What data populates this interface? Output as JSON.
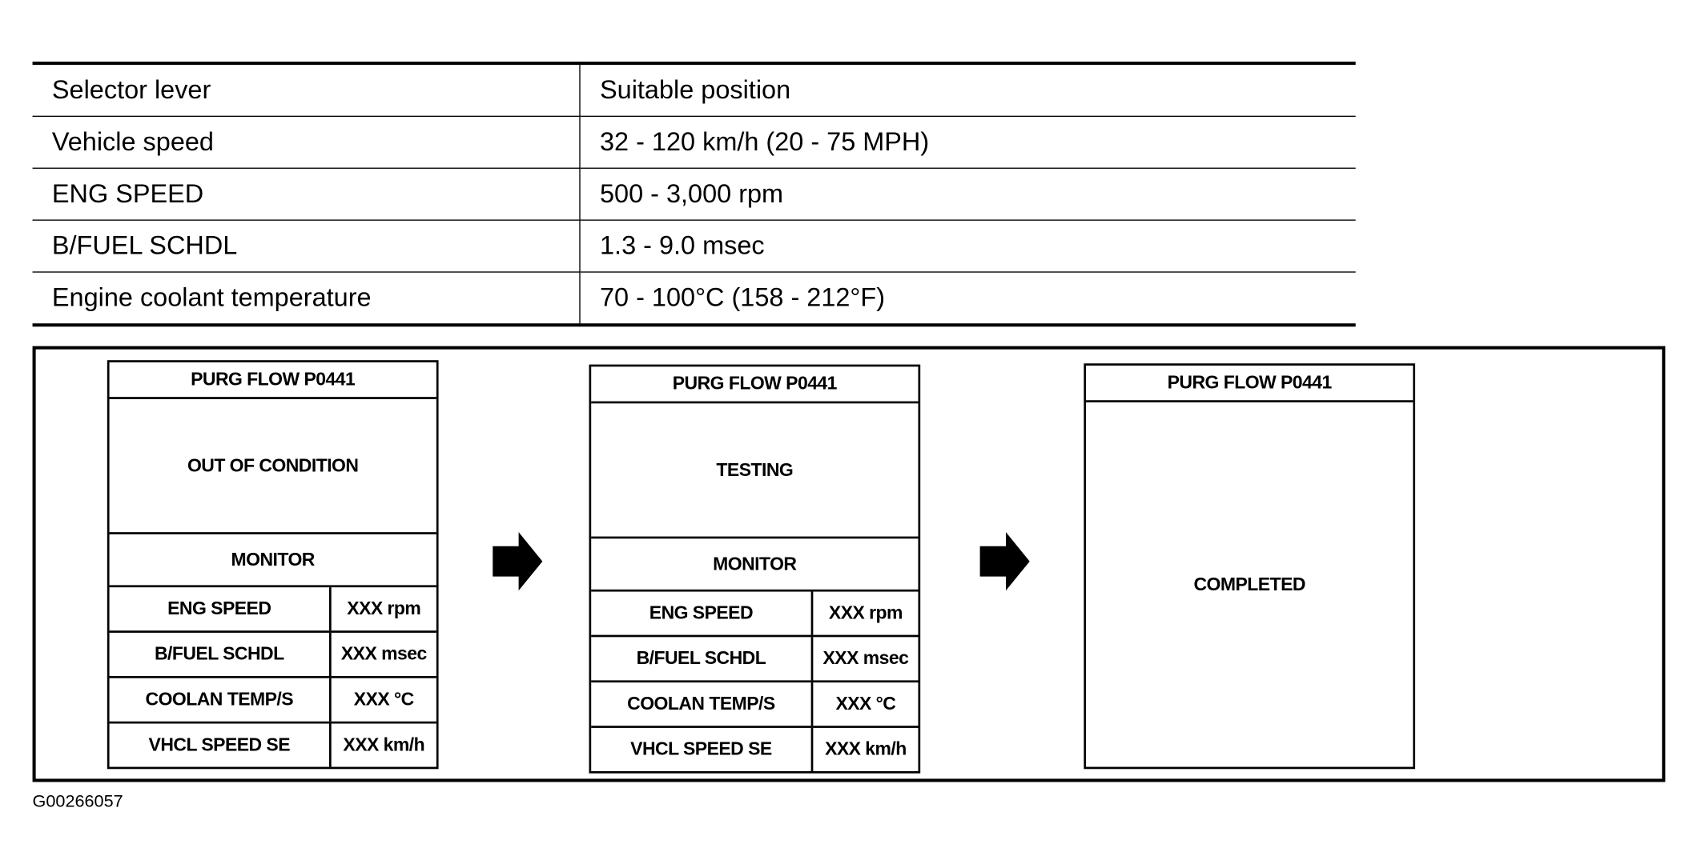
{
  "conditions_table": {
    "rows": [
      {
        "item": "Selector lever",
        "value": "Suitable position"
      },
      {
        "item": "Vehicle speed",
        "value": "32 - 120 km/h (20 - 75 MPH)"
      },
      {
        "item": "ENG SPEED",
        "value": "500 - 3,000 rpm"
      },
      {
        "item": "B/FUEL SCHDL",
        "value": "1.3 - 9.0 msec"
      },
      {
        "item": "Engine coolant temperature",
        "value": "70 - 100°C (158 - 212°F)"
      }
    ]
  },
  "screens": [
    {
      "title": "PURG FLOW P0441",
      "status": "OUT OF CONDITION",
      "monitor_label": "MONITOR",
      "monitor_rows": [
        {
          "item": "ENG SPEED",
          "value": "XXX rpm"
        },
        {
          "item": "B/FUEL SCHDL",
          "value": "XXX msec"
        },
        {
          "item": "COOLAN TEMP/S",
          "value": "XXX °C"
        },
        {
          "item": "VHCL SPEED SE",
          "value": "XXX km/h"
        }
      ]
    },
    {
      "title": "PURG FLOW P0441",
      "status": "TESTING",
      "monitor_label": "MONITOR",
      "monitor_rows": [
        {
          "item": "ENG SPEED",
          "value": "XXX rpm"
        },
        {
          "item": "B/FUEL SCHDL",
          "value": "XXX msec"
        },
        {
          "item": "COOLAN TEMP/S",
          "value": "XXX °C"
        },
        {
          "item": "VHCL SPEED SE",
          "value": "XXX km/h"
        }
      ]
    },
    {
      "title": "PURG FLOW P0441",
      "status": "COMPLETED"
    }
  ],
  "arrows": [
    "arrow-right-icon",
    "arrow-right-icon"
  ],
  "figure_id": "G00266057"
}
